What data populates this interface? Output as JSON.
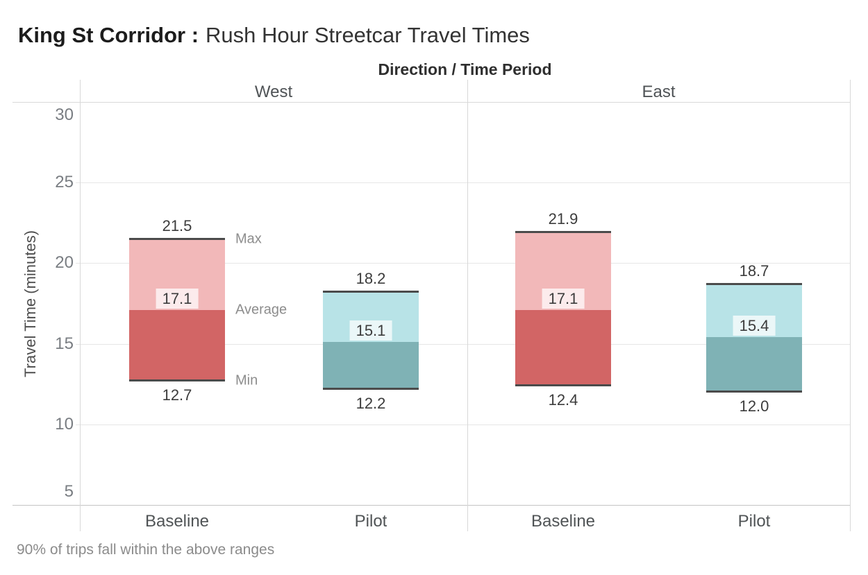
{
  "title": {
    "bold": "King St Corridor :",
    "regular": "Rush Hour Streetcar Travel Times"
  },
  "header": {
    "field_label": "Direction / Time Period"
  },
  "y_axis": {
    "title": "Travel Time (minutes)",
    "ticks": [
      30,
      25,
      20,
      15,
      10,
      5
    ],
    "min": 5,
    "max": 30
  },
  "range_annotations": {
    "max": "Max",
    "avg": "Average",
    "min": "Min"
  },
  "caption": "90% of trips fall within the above ranges",
  "colors": {
    "series": {
      "Baseline": {
        "light": "#f2b8b9",
        "dark": "#d26565"
      },
      "Pilot": {
        "light": "#b8e3e7",
        "dark": "#7fb2b5"
      }
    },
    "bar_cap": "#4b4b4b",
    "gridline": "#e6e6e6",
    "border": "#d8d8d8",
    "bottom_border": "#c4c4c4",
    "avg_label_bg": "rgba(255,255,255,0.72)"
  },
  "chart_data": {
    "type": "bar",
    "subtype": "min-avg-max range bars, faceted columns",
    "title": "King St Corridor : Rush Hour Streetcar Travel Times",
    "column_field": "Direction / Time Period",
    "xlabel": "",
    "ylabel": "Travel Time (minutes)",
    "ylim": [
      5,
      30
    ],
    "grid": "horizontal",
    "categories": [
      "Baseline",
      "Pilot"
    ],
    "panels": [
      {
        "direction": "West",
        "bars": [
          {
            "period": "Baseline",
            "min": 12.7,
            "avg": 17.1,
            "max": 21.5
          },
          {
            "period": "Pilot",
            "min": 12.2,
            "avg": 15.1,
            "max": 18.2
          }
        ]
      },
      {
        "direction": "East",
        "bars": [
          {
            "period": "Baseline",
            "min": 12.4,
            "avg": 17.1,
            "max": 21.9
          },
          {
            "period": "Pilot",
            "min": 12.0,
            "avg": 15.4,
            "max": 18.7
          }
        ]
      }
    ],
    "annotations": [
      "Max",
      "Average",
      "Min"
    ],
    "caption": "90% of trips fall within the above ranges"
  }
}
